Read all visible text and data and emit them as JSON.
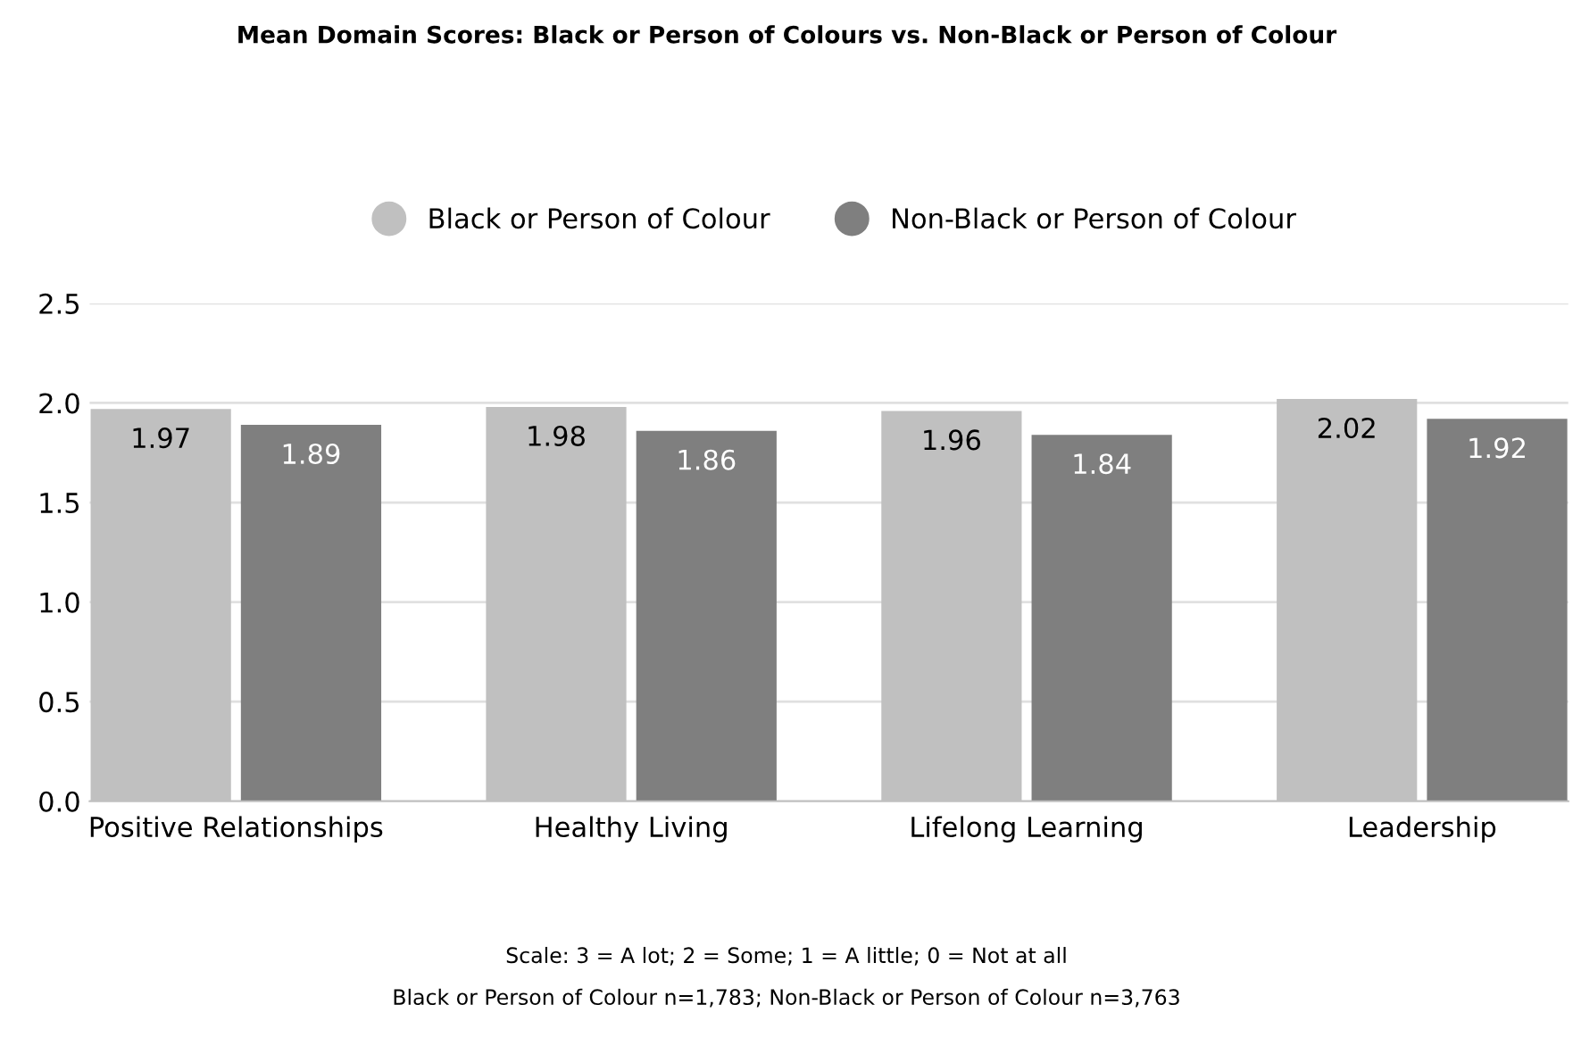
{
  "chart_data": {
    "type": "bar",
    "title": "Mean Domain Scores: Black or Person of Colours vs. Non-Black or Person of Colour",
    "categories": [
      "Positive Relationships",
      "Healthy Living",
      "Lifelong Learning",
      "Leadership"
    ],
    "series": [
      {
        "name": "Black or Person of Colour",
        "color": "#c0c0c0",
        "values": [
          1.97,
          1.98,
          1.96,
          2.02
        ]
      },
      {
        "name": "Non-Black or Person of Colour",
        "color": "#7f7f7f",
        "values": [
          1.89,
          1.86,
          1.84,
          1.92
        ]
      }
    ],
    "ylim": [
      0,
      2.5
    ],
    "yticks": [
      {
        "value": 0,
        "label": "0.0"
      },
      {
        "value": 0.5,
        "label": "0.5"
      },
      {
        "value": 1,
        "label": "1.0"
      },
      {
        "value": 1.5,
        "label": "1.5"
      },
      {
        "value": 2,
        "label": "2.0"
      },
      {
        "value": 2.5,
        "label": "2.5"
      }
    ],
    "grid": "y",
    "legend": "top",
    "data_labels": true,
    "annotations": [
      "Scale: 3 = A lot; 2 = Some; 1 = A little; 0 = Not at all",
      "Black or Person of Colour n=1,783; Non-Black or Person of Colour n=3,763"
    ]
  }
}
